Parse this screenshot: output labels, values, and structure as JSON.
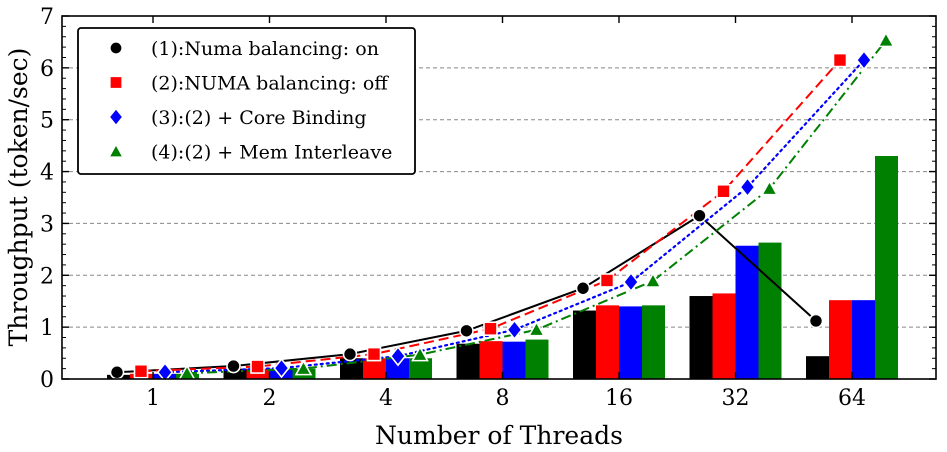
{
  "chart_data": {
    "type": "bar",
    "title": "",
    "xlabel": "Number of Threads",
    "ylabel": "Throughput (token/sec)",
    "ylim": [
      0,
      7
    ],
    "yticks": [
      0,
      1,
      2,
      3,
      4,
      5,
      6,
      7
    ],
    "grid": "horizontal dashed",
    "categories": [
      "1",
      "2",
      "4",
      "8",
      "16",
      "32",
      "64"
    ],
    "legend_position": "top-left",
    "series": [
      {
        "name": "(1):Numa balancing: on",
        "color": "#000000",
        "marker": "circle",
        "line_style": "solid",
        "bar_values": [
          0.08,
          0.2,
          0.4,
          0.68,
          1.32,
          1.6,
          0.44
        ],
        "line_values": [
          0.13,
          0.25,
          0.48,
          0.93,
          1.75,
          3.15,
          1.12
        ]
      },
      {
        "name": "(2):NUMA balancing: off",
        "color": "#ff0000",
        "marker": "square",
        "line_style": "dashed",
        "bar_values": [
          0.1,
          0.2,
          0.4,
          0.73,
          1.42,
          1.65,
          1.52
        ],
        "line_values": [
          0.15,
          0.24,
          0.48,
          0.97,
          1.9,
          3.62,
          6.15
        ]
      },
      {
        "name": "(3):(2) + Core Binding",
        "color": "#0000ff",
        "marker": "diamond",
        "line_style": "dotted",
        "bar_values": [
          0.1,
          0.2,
          0.4,
          0.72,
          1.4,
          2.57,
          1.52
        ],
        "line_values": [
          0.13,
          0.21,
          0.44,
          0.95,
          1.87,
          3.7,
          6.15
        ]
      },
      {
        "name": "(4):(2) + Mem Interleave",
        "color": "#008000",
        "marker": "triangle",
        "line_style": "dashdot",
        "bar_values": [
          0.1,
          0.2,
          0.4,
          0.76,
          1.42,
          2.63,
          4.3
        ],
        "line_values": [
          0.11,
          0.2,
          0.47,
          0.95,
          1.89,
          3.67,
          6.53
        ]
      }
    ]
  }
}
